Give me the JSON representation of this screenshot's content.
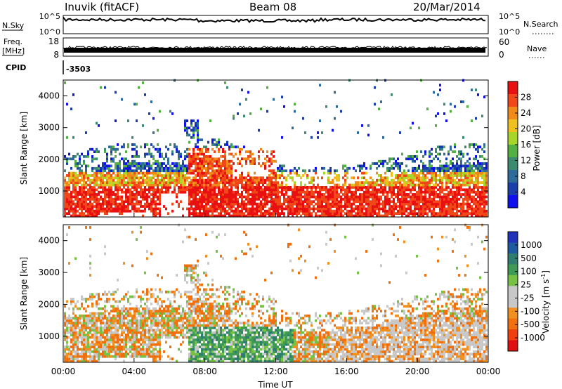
{
  "header": {
    "station": "Inuvik (fitACF)",
    "beam": "Beam 08",
    "date": "20/Mar/2014"
  },
  "panels": {
    "nsky": {
      "left_label": "N.Sky",
      "right_label": "N.Search",
      "left_ticks": [
        "10^5",
        "10^0"
      ],
      "right_ticks": [
        "10^5",
        "10^0"
      ]
    },
    "freq": {
      "left_label_line1": "Freq.",
      "left_label_line2": "[MHz]",
      "left_ticks": [
        "18",
        "8"
      ],
      "right_label": "Nave",
      "right_ticks": [
        "60",
        "0"
      ]
    },
    "cpid": {
      "label": "CPID",
      "value": "-3503"
    }
  },
  "colors": {
    "power_scale": [
      "#1010ee",
      "#1a3faa",
      "#2f6b9a",
      "#3c8a70",
      "#54b040",
      "#a8d628",
      "#f0c020",
      "#f08a18",
      "#f04818",
      "#e81010"
    ],
    "velocity_scale": [
      "#2233bb",
      "#1d5aa0",
      "#2f7d70",
      "#3f9a55",
      "#77c144",
      "#c8c8c8",
      "#c8c8c8",
      "#f09020",
      "#f07010",
      "#f04010",
      "#e01010"
    ]
  },
  "chart_data": [
    {
      "type": "heatmap",
      "name": "power",
      "xlabel": "",
      "ylabel": "Slant Range [km]",
      "x_ticks": [
        "00:00",
        "04:00",
        "08:00",
        "12:00",
        "16:00",
        "20:00",
        "00:00"
      ],
      "y_ticks": [
        1000,
        2000,
        3000,
        4000
      ],
      "xlim": [
        0,
        24
      ],
      "ylim": [
        180,
        4500
      ],
      "colorbar_label": "Power [dB]",
      "colorbar_ticks": [
        "4",
        "8",
        "12",
        "16",
        "20",
        "24",
        "28"
      ],
      "colorbar_range": [
        0,
        30
      ]
    },
    {
      "type": "heatmap",
      "name": "velocity",
      "xlabel": "Time UT",
      "ylabel": "Slant Range [km]",
      "x_ticks": [
        "00:00",
        "04:00",
        "08:00",
        "12:00",
        "16:00",
        "20:00",
        "00:00"
      ],
      "y_ticks": [
        1000,
        2000,
        3000,
        4000
      ],
      "xlim": [
        0,
        24
      ],
      "ylim": [
        180,
        4500
      ],
      "colorbar_label": "Velocity [m s^-1]",
      "colorbar_ticks": [
        "1000",
        "500",
        "100",
        "25",
        "-25",
        "-100",
        "-500",
        "-1000"
      ]
    }
  ]
}
